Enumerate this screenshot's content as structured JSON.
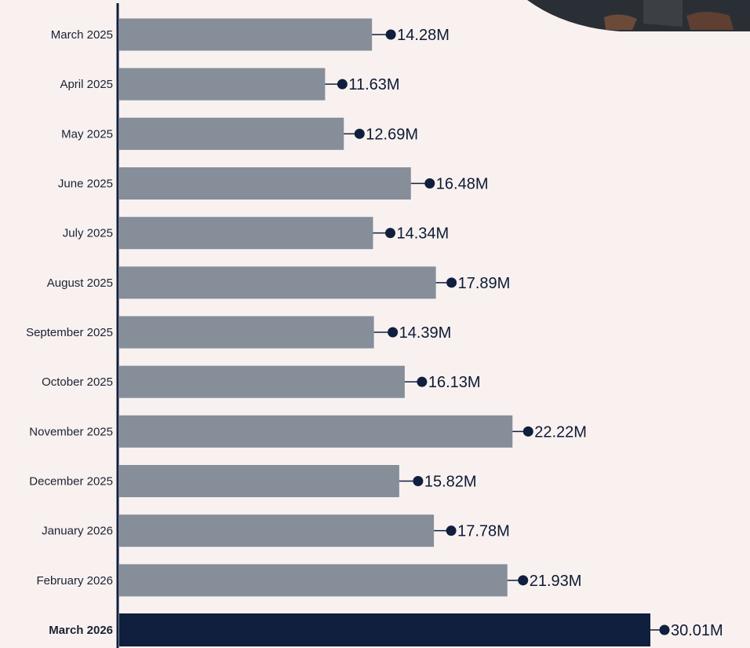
{
  "chart_data": {
    "type": "bar",
    "orientation": "horizontal",
    "categories": [
      "March 2025",
      "April 2025",
      "May 2025",
      "June 2025",
      "July 2025",
      "August 2025",
      "September 2025",
      "October 2025",
      "November 2025",
      "December 2025",
      "January 2026",
      "February 2026",
      "March 2026"
    ],
    "values": [
      14.28,
      11.63,
      12.69,
      16.48,
      14.34,
      17.89,
      14.39,
      16.13,
      22.22,
      15.82,
      17.78,
      21.93,
      30.01
    ],
    "value_labels": [
      "14.28M",
      "11.63M",
      "12.69M",
      "16.48M",
      "14.34M",
      "17.89M",
      "14.39M",
      "16.13M",
      "22.22M",
      "15.82M",
      "17.78M",
      "21.93M",
      "30.01M"
    ],
    "highlight_index": 12,
    "colors": {
      "bar": "#858e99",
      "highlight": "#0f1f3d",
      "axis": "#0f1f3d",
      "marker": "#0f1f3d",
      "background": "#f8f1f0"
    },
    "grid": false,
    "legend": "none",
    "title": "",
    "xlabel": "",
    "ylabel": ""
  }
}
